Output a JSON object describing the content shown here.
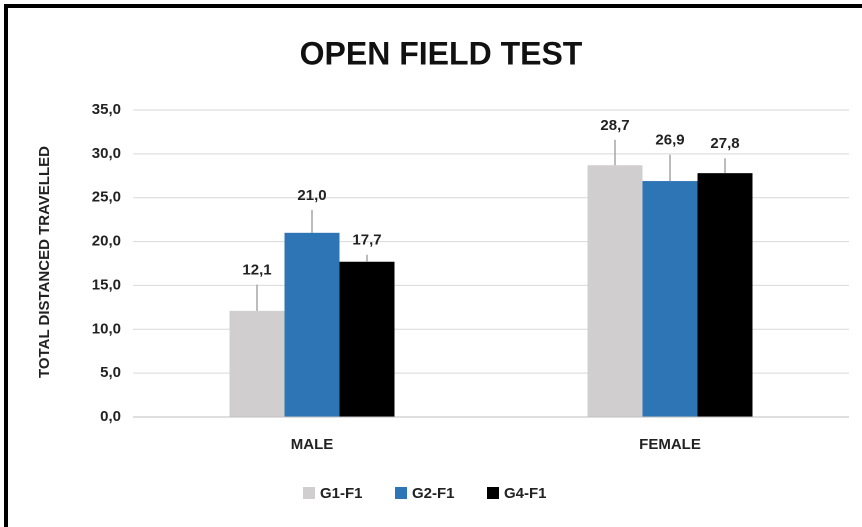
{
  "chart_data": {
    "type": "bar",
    "title": "OPEN FIELD TEST",
    "y_label": "TOTAL DISTANCED TRAVELLED",
    "categories": [
      "MALE",
      "FEMALE"
    ],
    "series": [
      {
        "name": "G1-F1",
        "color": "#d0cece",
        "values": [
          12.1,
          28.7
        ],
        "value_labels": [
          "12,1",
          "28,7"
        ],
        "errors": [
          3.0,
          2.9
        ]
      },
      {
        "name": "G2-F1",
        "color": "#2e75b6",
        "values": [
          21.0,
          26.9
        ],
        "value_labels": [
          "21,0",
          "26,9"
        ],
        "errors": [
          2.6,
          3.0
        ]
      },
      {
        "name": "G4-F1",
        "color": "#000000",
        "values": [
          17.7,
          27.8
        ],
        "value_labels": [
          "17,7",
          "27,8"
        ],
        "errors": [
          0.8,
          1.7
        ]
      }
    ],
    "ylim": [
      0,
      35
    ],
    "yticks": [
      {
        "value": 0,
        "label": "0,0"
      },
      {
        "value": 5,
        "label": "5,0"
      },
      {
        "value": 10,
        "label": "10,0"
      },
      {
        "value": 15,
        "label": "15,0"
      },
      {
        "value": 20,
        "label": "20,0"
      },
      {
        "value": 25,
        "label": "25,0"
      },
      {
        "value": 30,
        "label": "30,0"
      },
      {
        "value": 35,
        "label": "35,0"
      }
    ],
    "grid": true,
    "legend": "bottom"
  }
}
